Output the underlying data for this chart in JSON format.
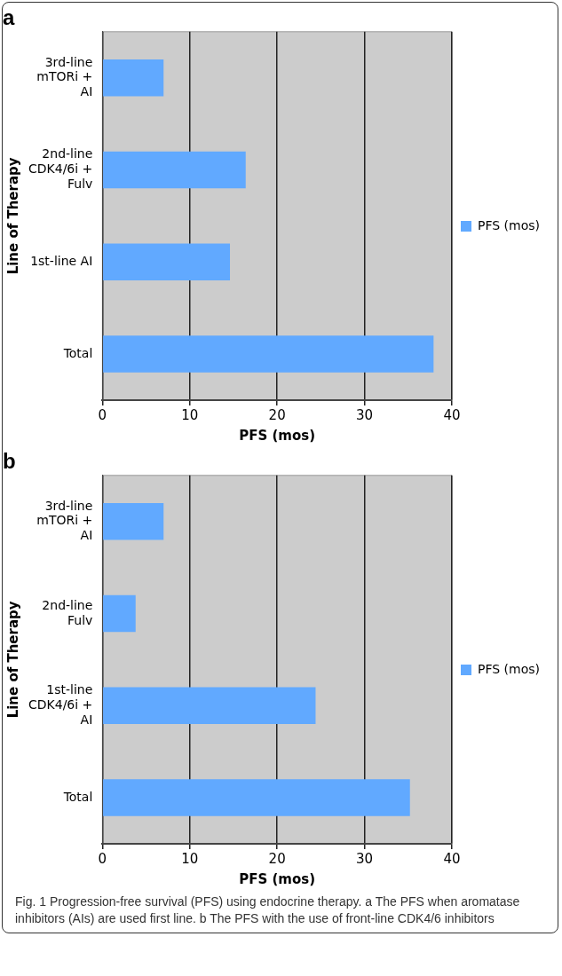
{
  "chart_data": [
    {
      "type": "bar",
      "orientation": "horizontal",
      "title": "a",
      "xlabel": "PFS (mos)",
      "ylabel": "Line of Therapy",
      "categories": [
        "3rd-line mTORi + AI",
        "2nd-line CDK4/6i + Fulv",
        "1st-line AI",
        "Total"
      ],
      "series": [
        {
          "name": "PFS (mos)",
          "color": "#61a9ff",
          "values": [
            7.0,
            16.4,
            14.6,
            37.9
          ]
        }
      ],
      "xlim": [
        0,
        40
      ],
      "xticks": [
        0,
        10,
        20,
        30,
        40
      ],
      "grid": "x",
      "legend": "right"
    },
    {
      "type": "bar",
      "orientation": "horizontal",
      "title": "b",
      "xlabel": "PFS (mos)",
      "ylabel": "Line of Therapy",
      "categories": [
        "3rd-line mTORi + AI",
        "2nd-line Fulv",
        "1st-line CDK4/6i + AI",
        "Total"
      ],
      "series": [
        {
          "name": "PFS (mos)",
          "color": "#61a9ff",
          "values": [
            7.0,
            3.8,
            24.4,
            35.2
          ]
        }
      ],
      "xlim": [
        0,
        40
      ],
      "xticks": [
        0,
        10,
        20,
        30,
        40
      ],
      "grid": "x",
      "legend": "right",
      "annotations": [
        "Fig. 1 Progression-free survival (PFS) using endocrine therapy. a The PFS when aromatase inhibitors (AIs) are used first line. b The PFS with the use of front-line CDK4/6 inhibitors"
      ]
    }
  ]
}
